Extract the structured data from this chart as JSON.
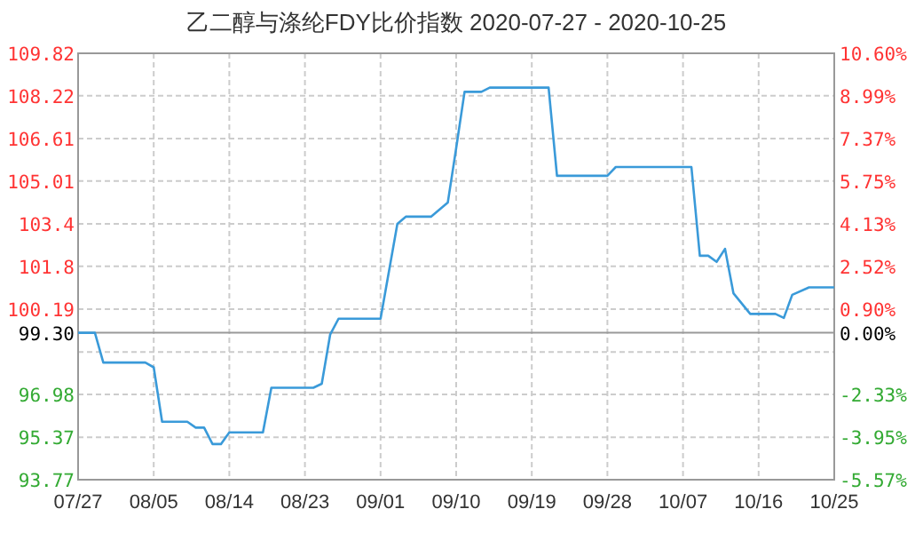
{
  "chart_data": {
    "type": "line",
    "title": "乙二醇与涤纶FDY比价指数 2020-07-27 - 2020-10-25",
    "x": [
      "2020-07-27",
      "2020-07-29",
      "2020-07-30",
      "2020-08-04",
      "2020-08-05",
      "2020-08-06",
      "2020-08-09",
      "2020-08-10",
      "2020-08-11",
      "2020-08-12",
      "2020-08-13",
      "2020-08-14",
      "2020-08-18",
      "2020-08-19",
      "2020-08-24",
      "2020-08-25",
      "2020-08-26",
      "2020-08-27",
      "2020-09-01",
      "2020-09-03",
      "2020-09-04",
      "2020-09-07",
      "2020-09-09",
      "2020-09-10",
      "2020-09-11",
      "2020-09-13",
      "2020-09-14",
      "2020-09-21",
      "2020-09-22",
      "2020-09-28",
      "2020-09-29",
      "2020-10-08",
      "2020-10-09",
      "2020-10-10",
      "2020-10-11",
      "2020-10-12",
      "2020-10-13",
      "2020-10-15",
      "2020-10-18",
      "2020-10-19",
      "2020-10-20",
      "2020-10-22",
      "2020-10-25"
    ],
    "series": [
      {
        "color": "#3a9ad9",
        "values": [
          99.3,
          99.3,
          98.18,
          98.18,
          98.0,
          95.95,
          95.95,
          95.73,
          95.73,
          95.11,
          95.11,
          95.55,
          95.55,
          97.23,
          97.23,
          97.38,
          99.23,
          99.83,
          99.83,
          103.4,
          103.67,
          103.67,
          104.2,
          106.25,
          108.37,
          108.37,
          108.53,
          108.53,
          105.21,
          105.21,
          105.54,
          105.54,
          102.2,
          102.2,
          101.97,
          102.46,
          100.79,
          100.01,
          100.01,
          99.86,
          100.73,
          101.01,
          101.01
        ]
      }
    ],
    "xlim": [
      "2020-07-27",
      "2020-10-25"
    ],
    "xticks": [
      {
        "value": "2020-07-27",
        "label": "07/27"
      },
      {
        "value": "2020-08-05",
        "label": "08/05"
      },
      {
        "value": "2020-08-14",
        "label": "08/14"
      },
      {
        "value": "2020-08-23",
        "label": "08/23"
      },
      {
        "value": "2020-09-01",
        "label": "09/01"
      },
      {
        "value": "2020-09-10",
        "label": "09/10"
      },
      {
        "value": "2020-09-19",
        "label": "09/19"
      },
      {
        "value": "2020-09-28",
        "label": "09/28"
      },
      {
        "value": "2020-10-07",
        "label": "10/07"
      },
      {
        "value": "2020-10-16",
        "label": "10/16"
      },
      {
        "value": "2020-10-25",
        "label": "10/25"
      }
    ],
    "ylim": [
      93.77,
      109.82
    ],
    "yticks": [
      93.77,
      95.37,
      96.98,
      {
        "value": 98.58,
        "label": null
      },
      100.19,
      101.8,
      103.4,
      105.01,
      106.61,
      108.22,
      109.82
    ],
    "y2lim": [
      -5.57,
      10.6
    ],
    "y2ticks": [
      {
        "value": -5.57,
        "label": "-5.57%"
      },
      {
        "value": -3.95,
        "label": "-3.95%"
      },
      {
        "value": -2.33,
        "label": "-2.33%"
      },
      {
        "value": -0.72,
        "label": null
      },
      {
        "value": 0.0,
        "label": "0.00%"
      },
      {
        "value": 0.9,
        "label": "0.90%"
      },
      {
        "value": 2.52,
        "label": "2.52%"
      },
      {
        "value": 4.13,
        "label": "4.13%"
      },
      {
        "value": 5.75,
        "label": "5.75%"
      },
      {
        "value": 7.37,
        "label": "7.37%"
      },
      {
        "value": 8.99,
        "label": "8.99%"
      },
      {
        "value": 10.6,
        "label": "10.60%"
      }
    ],
    "ref_lines": [
      {
        "axis": "y",
        "value": 99.3,
        "label": "99.30",
        "color": "#999999"
      }
    ],
    "grid": true,
    "line_style": "solid"
  }
}
